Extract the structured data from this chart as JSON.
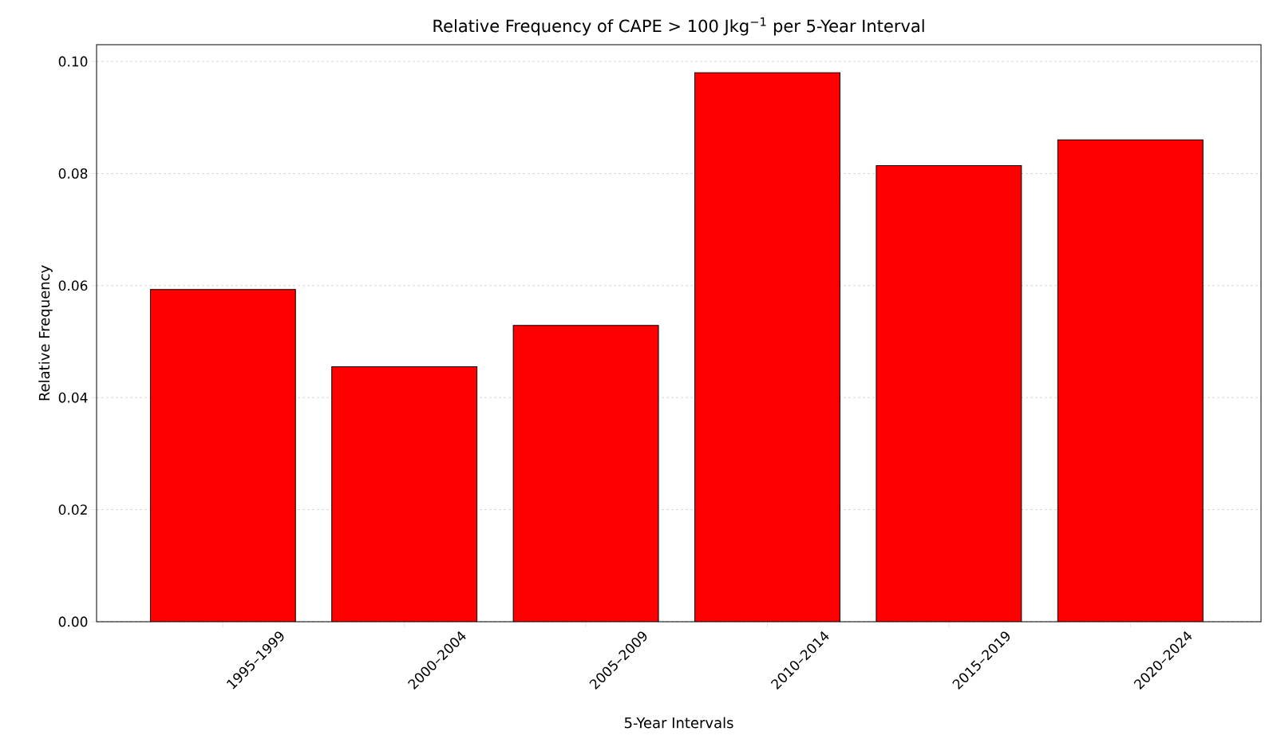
{
  "chart_data": {
    "type": "bar",
    "title": "Relative Frequency of CAPE > 100 Jkg$^{−1}$ per 5-Year Interval",
    "xlabel": "5-Year Intervals",
    "ylabel": "Relative Frequency",
    "categories": [
      "1995–1999",
      "2000–2004",
      "2005–2009",
      "2010–2014",
      "2015–2019",
      "2020–2024"
    ],
    "values": [
      0.0593,
      0.0455,
      0.0529,
      0.098,
      0.0814,
      0.086
    ],
    "color": "#ff0000",
    "ylim": [
      0,
      0.103
    ],
    "yticks": [
      {
        "value": 0,
        "label": "0.00"
      },
      {
        "value": 0.02,
        "label": "0.02"
      },
      {
        "value": 0.04,
        "label": "0.04"
      },
      {
        "value": 0.06,
        "label": "0.06"
      },
      {
        "value": 0.08,
        "label": "0.08"
      },
      {
        "value": 0.1,
        "label": "0.10"
      }
    ],
    "grid": "y"
  }
}
